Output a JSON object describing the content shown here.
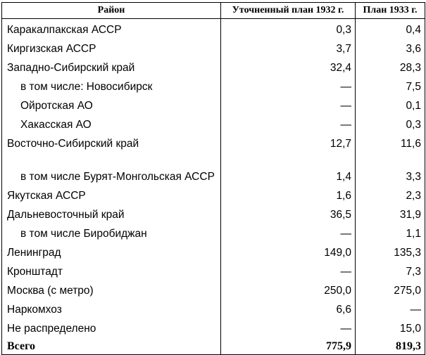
{
  "table": {
    "headers": {
      "region": "Район",
      "plan_1932": "Уточненный план 1932 г.",
      "plan_1933": "План 1933 г."
    },
    "rows": [
      {
        "region": "Каракалпакская АССР",
        "plan_1932": "0,3",
        "plan_1933": "0,4",
        "indent": false
      },
      {
        "region": "Киргизская АССР",
        "plan_1932": "3,7",
        "plan_1933": "3,6",
        "indent": false
      },
      {
        "region": "Западно-Сибирский край",
        "plan_1932": "32,4",
        "plan_1933": "28,3",
        "indent": false
      },
      {
        "region": "в том числе: Новосибирск",
        "plan_1932": "—",
        "plan_1933": "7,5",
        "indent": true
      },
      {
        "region": "Ойротская АО",
        "plan_1932": "—",
        "plan_1933": "0,1",
        "indent": true
      },
      {
        "region": "Хакасская АО",
        "plan_1932": "—",
        "plan_1933": "0,3",
        "indent": true
      },
      {
        "region": "Восточно-Сибирский край",
        "plan_1932": "12,7",
        "plan_1933": "11,6",
        "indent": false
      },
      {
        "region": "в том числе Бурят-Монгольская АССР",
        "plan_1932": "1,4",
        "plan_1933": "3,3",
        "indent": true,
        "tall": true
      },
      {
        "region": "Якутская АССР",
        "plan_1932": "1,6",
        "plan_1933": "2,3",
        "indent": false
      },
      {
        "region": "Дальневосточный край",
        "plan_1932": "36,5",
        "plan_1933": "31,9",
        "indent": false
      },
      {
        "region": "в том числе Биробиджан",
        "plan_1932": "—",
        "plan_1933": "1,1",
        "indent": true
      },
      {
        "region": "Ленинград",
        "plan_1932": "149,0",
        "plan_1933": "135,3",
        "indent": false
      },
      {
        "region": "Кронштадт",
        "plan_1932": "—",
        "plan_1933": "7,3",
        "indent": false
      },
      {
        "region": "Москва (с метро)",
        "plan_1932": "250,0",
        "plan_1933": "275,0",
        "indent": false
      },
      {
        "region": "Наркомхоз",
        "plan_1932": "6,6",
        "plan_1933": "—",
        "indent": false
      },
      {
        "region": "Не распределено",
        "plan_1932": "—",
        "plan_1933": "15,0",
        "indent": false
      }
    ],
    "total": {
      "region": "Всего",
      "plan_1932": "775,9",
      "plan_1933": "819,3"
    }
  }
}
